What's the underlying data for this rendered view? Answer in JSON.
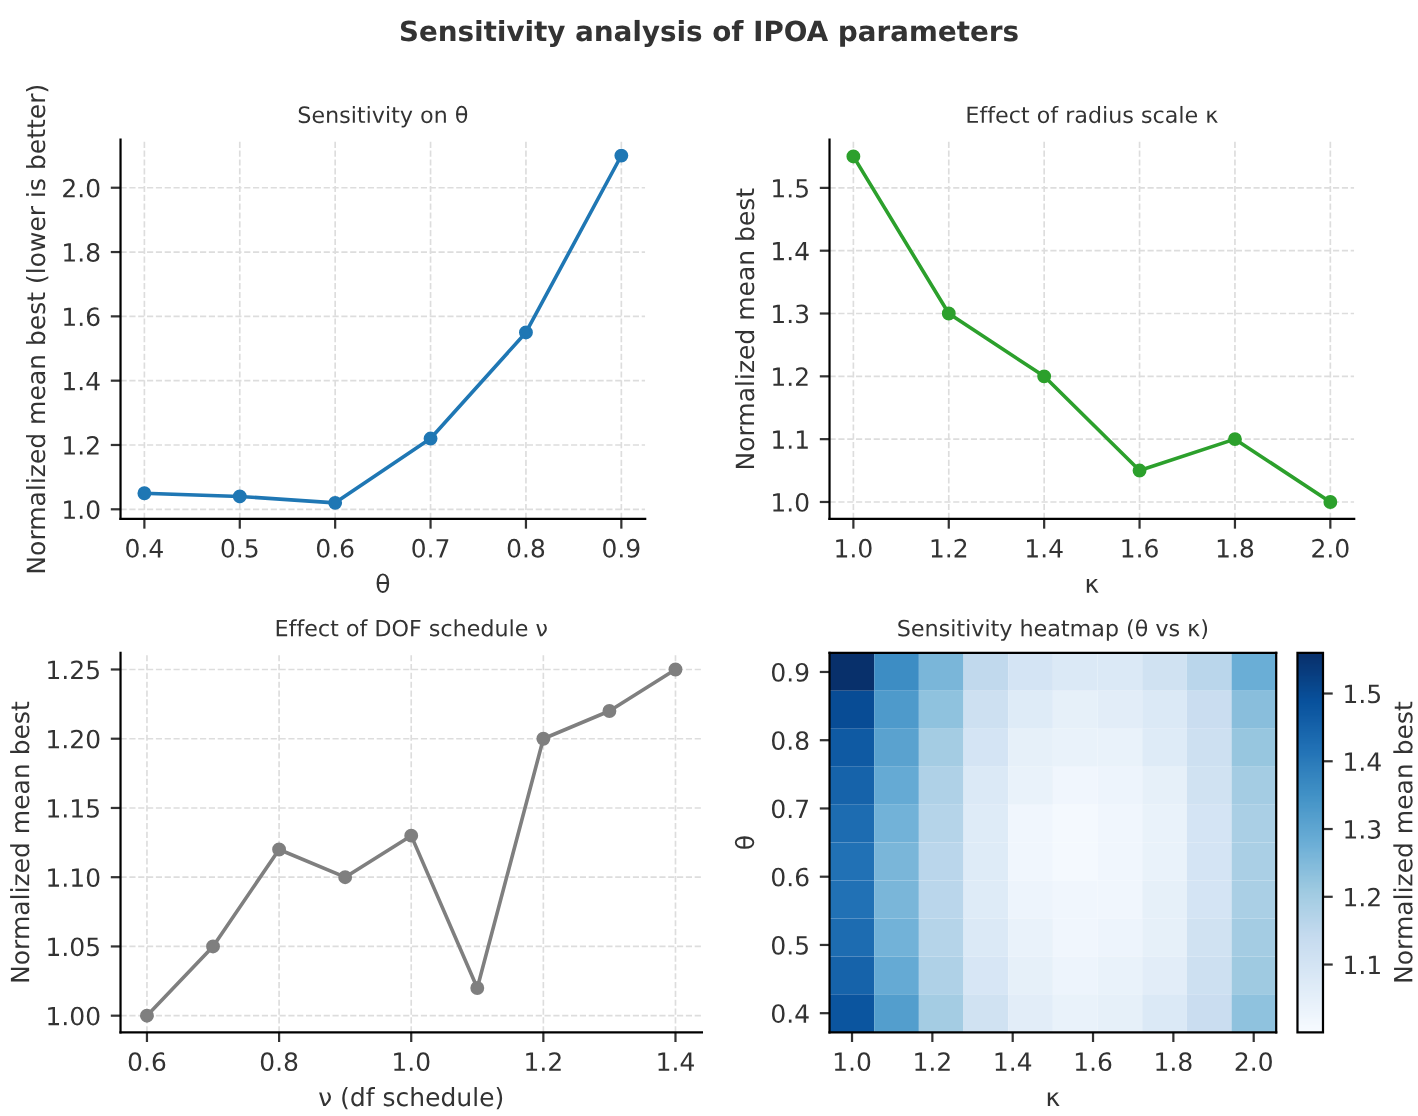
{
  "chart_data": [
    {
      "type": "line",
      "annotations": [
        "Sensitivity analysis of IPOA parameters"
      ],
      "title": "Sensitivity on θ",
      "xlabel": "θ",
      "ylabel": "Normalized mean best (lower is better)",
      "x": [
        0.4,
        0.5,
        0.6,
        0.7,
        0.8,
        0.9
      ],
      "series": [
        {
          "color": "#1f77b4",
          "values": [
            1.05,
            1.04,
            1.02,
            1.22,
            1.55,
            2.1
          ]
        }
      ],
      "marker": "circle",
      "grid": true,
      "xlim": [
        0.375,
        0.925
      ],
      "ylim": [
        0.97,
        2.15
      ],
      "xticks": [
        {
          "value": 0.4,
          "label": "0.4"
        },
        {
          "value": 0.5,
          "label": "0.5"
        },
        {
          "value": 0.6,
          "label": "0.6"
        },
        {
          "value": 0.7,
          "label": "0.7"
        },
        {
          "value": 0.8,
          "label": "0.8"
        },
        {
          "value": 0.9,
          "label": "0.9"
        }
      ],
      "yticks": [
        {
          "value": 1.0,
          "label": "1.0"
        },
        {
          "value": 1.2,
          "label": "1.2"
        },
        {
          "value": 1.4,
          "label": "1.4"
        },
        {
          "value": 1.6,
          "label": "1.6"
        },
        {
          "value": 1.8,
          "label": "1.8"
        },
        {
          "value": 2.0,
          "label": "2.0"
        }
      ]
    },
    {
      "type": "line",
      "title": "Effect of radius scale κ",
      "xlabel": "κ",
      "ylabel": "Normalized mean best",
      "x": [
        1.0,
        1.2,
        1.4,
        1.6,
        1.8,
        2.0
      ],
      "series": [
        {
          "color": "#2ca02c",
          "values": [
            1.55,
            1.3,
            1.2,
            1.05,
            1.1,
            1.0
          ]
        }
      ],
      "marker": "circle",
      "grid": true,
      "xlim": [
        0.95,
        2.05
      ],
      "ylim": [
        0.973,
        1.577
      ],
      "xticks": [
        {
          "value": 1.0,
          "label": "1.0"
        },
        {
          "value": 1.2,
          "label": "1.2"
        },
        {
          "value": 1.4,
          "label": "1.4"
        },
        {
          "value": 1.6,
          "label": "1.6"
        },
        {
          "value": 1.8,
          "label": "1.8"
        },
        {
          "value": 2.0,
          "label": "2.0"
        }
      ],
      "yticks": [
        {
          "value": 1.0,
          "label": "1.0"
        },
        {
          "value": 1.1,
          "label": "1.1"
        },
        {
          "value": 1.2,
          "label": "1.2"
        },
        {
          "value": 1.3,
          "label": "1.3"
        },
        {
          "value": 1.4,
          "label": "1.4"
        },
        {
          "value": 1.5,
          "label": "1.5"
        }
      ]
    },
    {
      "type": "line",
      "title": "Effect of DOF schedule ν",
      "xlabel": "ν (df schedule)",
      "ylabel": "Normalized mean best",
      "x": [
        0.6,
        0.7,
        0.8,
        0.9,
        1.0,
        1.1,
        1.2,
        1.3,
        1.4
      ],
      "series": [
        {
          "color": "#7f7f7f",
          "values": [
            1.0,
            1.05,
            1.12,
            1.1,
            1.13,
            1.02,
            1.2,
            1.22,
            1.25
          ]
        }
      ],
      "marker": "circle",
      "grid": true,
      "xlim": [
        0.56,
        1.44
      ],
      "ylim": [
        0.988,
        1.262
      ],
      "xticks": [
        {
          "value": 0.6,
          "label": "0.6"
        },
        {
          "value": 0.8,
          "label": "0.8"
        },
        {
          "value": 1.0,
          "label": "1.0"
        },
        {
          "value": 1.2,
          "label": "1.2"
        },
        {
          "value": 1.4,
          "label": "1.4"
        }
      ],
      "yticks": [
        {
          "value": 1.0,
          "label": "1.00"
        },
        {
          "value": 1.05,
          "label": "1.05"
        },
        {
          "value": 1.1,
          "label": "1.10"
        },
        {
          "value": 1.15,
          "label": "1.15"
        },
        {
          "value": 1.2,
          "label": "1.20"
        },
        {
          "value": 1.25,
          "label": "1.25"
        }
      ]
    },
    {
      "type": "heatmap",
      "title": "Sensitivity heatmap (θ vs κ)",
      "xlabel": "κ",
      "ylabel": "θ",
      "clabel": "Normalized mean best",
      "cells": [
        [
          1.56,
          1.36,
          1.26,
          1.15,
          1.1,
          1.08,
          1.08,
          1.11,
          1.16,
          1.28
        ],
        [
          1.5,
          1.33,
          1.23,
          1.12,
          1.07,
          1.05,
          1.06,
          1.08,
          1.13,
          1.24
        ],
        [
          1.47,
          1.31,
          1.2,
          1.1,
          1.05,
          1.04,
          1.04,
          1.07,
          1.12,
          1.22
        ],
        [
          1.45,
          1.29,
          1.18,
          1.08,
          1.04,
          1.02,
          1.03,
          1.05,
          1.11,
          1.2
        ],
        [
          1.43,
          1.27,
          1.17,
          1.07,
          1.02,
          1.01,
          1.02,
          1.04,
          1.1,
          1.19
        ],
        [
          1.42,
          1.26,
          1.16,
          1.07,
          1.02,
          1.01,
          1.02,
          1.04,
          1.1,
          1.19
        ],
        [
          1.42,
          1.26,
          1.16,
          1.07,
          1.03,
          1.02,
          1.02,
          1.05,
          1.1,
          1.19
        ],
        [
          1.43,
          1.27,
          1.17,
          1.08,
          1.04,
          1.02,
          1.03,
          1.05,
          1.11,
          1.2
        ],
        [
          1.45,
          1.29,
          1.18,
          1.09,
          1.05,
          1.03,
          1.04,
          1.06,
          1.12,
          1.21
        ],
        [
          1.48,
          1.32,
          1.2,
          1.11,
          1.06,
          1.04,
          1.05,
          1.08,
          1.13,
          1.23
        ]
      ],
      "clim": [
        1.0,
        1.56
      ],
      "cticks": [
        {
          "value": 1.1,
          "label": "1.1"
        },
        {
          "value": 1.2,
          "label": "1.2"
        },
        {
          "value": 1.3,
          "label": "1.3"
        },
        {
          "value": 1.4,
          "label": "1.4"
        },
        {
          "value": 1.5,
          "label": "1.5"
        }
      ],
      "xlim": [
        0.944,
        2.056
      ],
      "ylim": [
        0.372,
        0.928
      ],
      "xticks": [
        {
          "value": 1.0,
          "label": "1.0"
        },
        {
          "value": 1.2,
          "label": "1.2"
        },
        {
          "value": 1.4,
          "label": "1.4"
        },
        {
          "value": 1.6,
          "label": "1.6"
        },
        {
          "value": 1.8,
          "label": "1.8"
        },
        {
          "value": 2.0,
          "label": "2.0"
        }
      ],
      "yticks": [
        {
          "value": 0.4,
          "label": "0.4"
        },
        {
          "value": 0.5,
          "label": "0.5"
        },
        {
          "value": 0.6,
          "label": "0.6"
        },
        {
          "value": 0.7,
          "label": "0.7"
        },
        {
          "value": 0.8,
          "label": "0.8"
        },
        {
          "value": 0.9,
          "label": "0.9"
        }
      ]
    }
  ]
}
